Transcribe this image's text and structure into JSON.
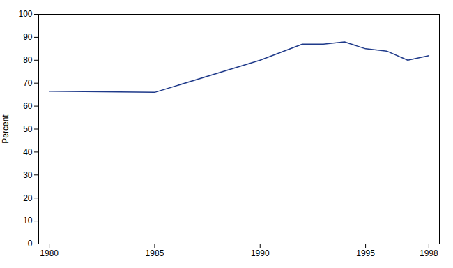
{
  "chart_data": {
    "type": "line",
    "x": [
      1980,
      1985,
      1990,
      1992,
      1993,
      1994,
      1995,
      1996,
      1997,
      1998
    ],
    "values": [
      66.5,
      66.0,
      80.0,
      87.0,
      87.0,
      88.0,
      85.0,
      84.0,
      80.0,
      82.0
    ],
    "color": "#1F3A8A",
    "ylabel": "Percent",
    "xlim": [
      1979.5,
      1998.5
    ],
    "ylim": [
      0,
      100
    ],
    "xticks": [
      1980,
      1985,
      1990,
      1995,
      1998
    ],
    "yticks": [
      0,
      10,
      20,
      30,
      40,
      50,
      60,
      70,
      80,
      90,
      100
    ],
    "grid": false
  }
}
